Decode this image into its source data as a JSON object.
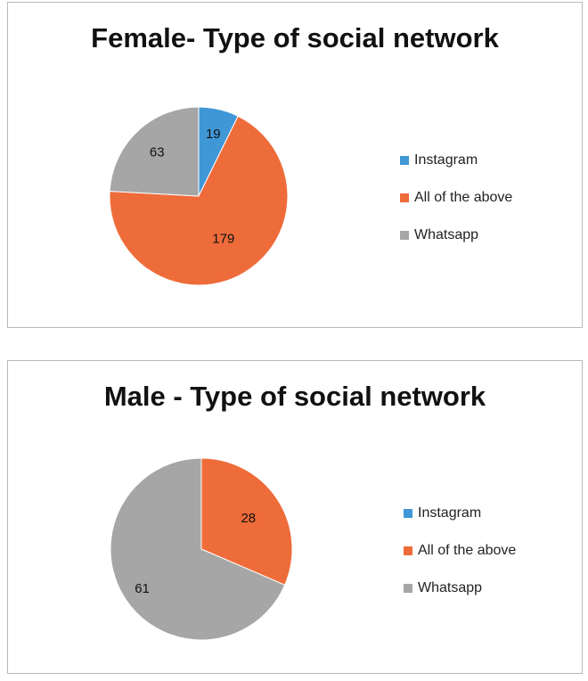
{
  "colors": {
    "Instagram": "#3f97d6",
    "All of the above": "#ee6c3a",
    "Whatsapp": "#a6a6a6"
  },
  "chart_data": [
    {
      "type": "pie",
      "title": "Female-  Type of social network",
      "categories": [
        "Instagram",
        "All of the above",
        "Whatsapp"
      ],
      "values": [
        19,
        179,
        63
      ],
      "data_labels": [
        "19",
        "179",
        "63"
      ],
      "legend": [
        "Instagram",
        "All of the above",
        "Whatsapp"
      ],
      "legend_position": "right"
    },
    {
      "type": "pie",
      "title": "Male - Type of social network",
      "categories": [
        "Instagram",
        "All of the above",
        "Whatsapp"
      ],
      "values": [
        0,
        28,
        61
      ],
      "data_labels": [
        "",
        "28",
        "61"
      ],
      "legend": [
        "Instagram",
        "All of the above",
        "Whatsapp"
      ],
      "legend_position": "right"
    }
  ]
}
